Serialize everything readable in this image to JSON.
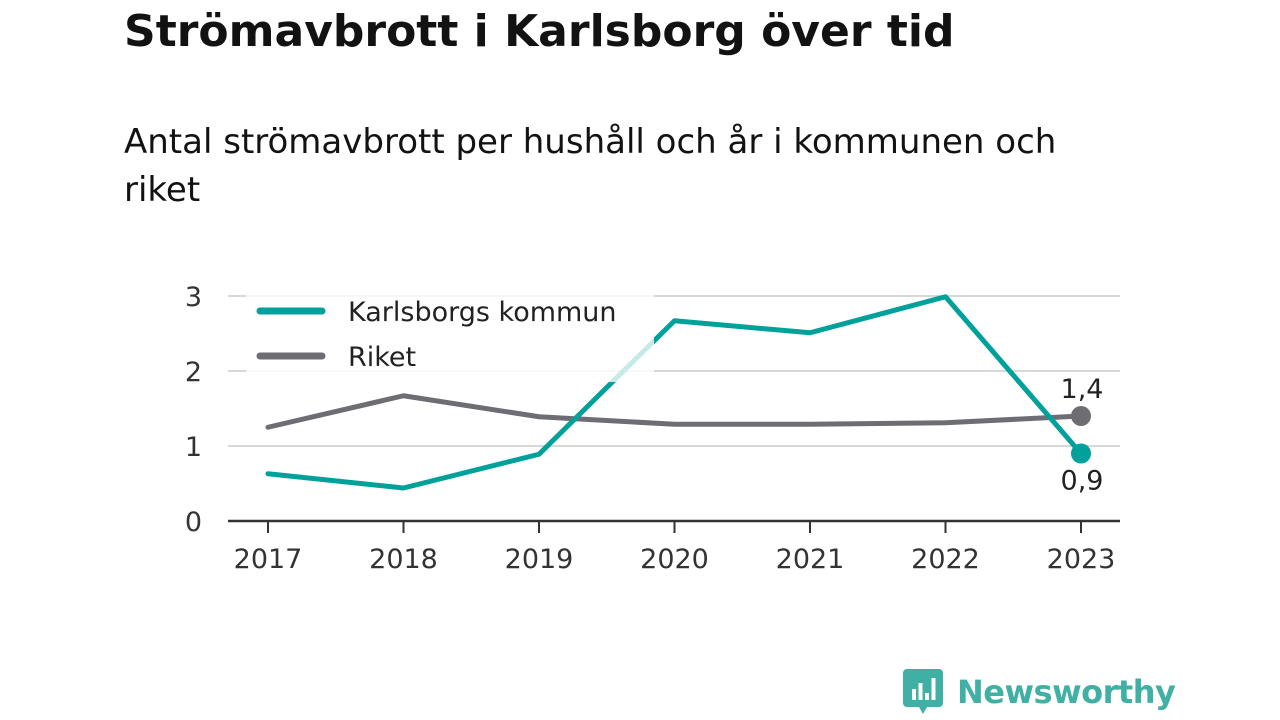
{
  "title": "Strömavbrott i Karlsborg över tid",
  "subtitle": "Antal strömavbrott per hushåll och år i kommunen och riket",
  "brand": {
    "name": "Newsworthy",
    "icon": "chart-logo-icon"
  },
  "colors": {
    "karlsborg": "#00a19a",
    "riket": "#6e6d73",
    "gridline": "#d8d8d8",
    "axis": "#333333",
    "brand": "#3fb0a3"
  },
  "chart_data": {
    "type": "line",
    "x": [
      "2017",
      "2018",
      "2019",
      "2020",
      "2021",
      "2022",
      "2023"
    ],
    "y_ticks": [
      "0",
      "1",
      "2",
      "3"
    ],
    "ylim": [
      0,
      3
    ],
    "grid": true,
    "legend_position": "top-left",
    "series": [
      {
        "name": "Karlsborgs kommun",
        "values": [
          0.63,
          0.44,
          0.89,
          2.67,
          2.51,
          2.99,
          0.9
        ]
      },
      {
        "name": "Riket",
        "values": [
          1.25,
          1.67,
          1.39,
          1.29,
          1.29,
          1.31,
          1.4
        ]
      }
    ],
    "end_labels": [
      "0,9",
      "1,4"
    ]
  }
}
